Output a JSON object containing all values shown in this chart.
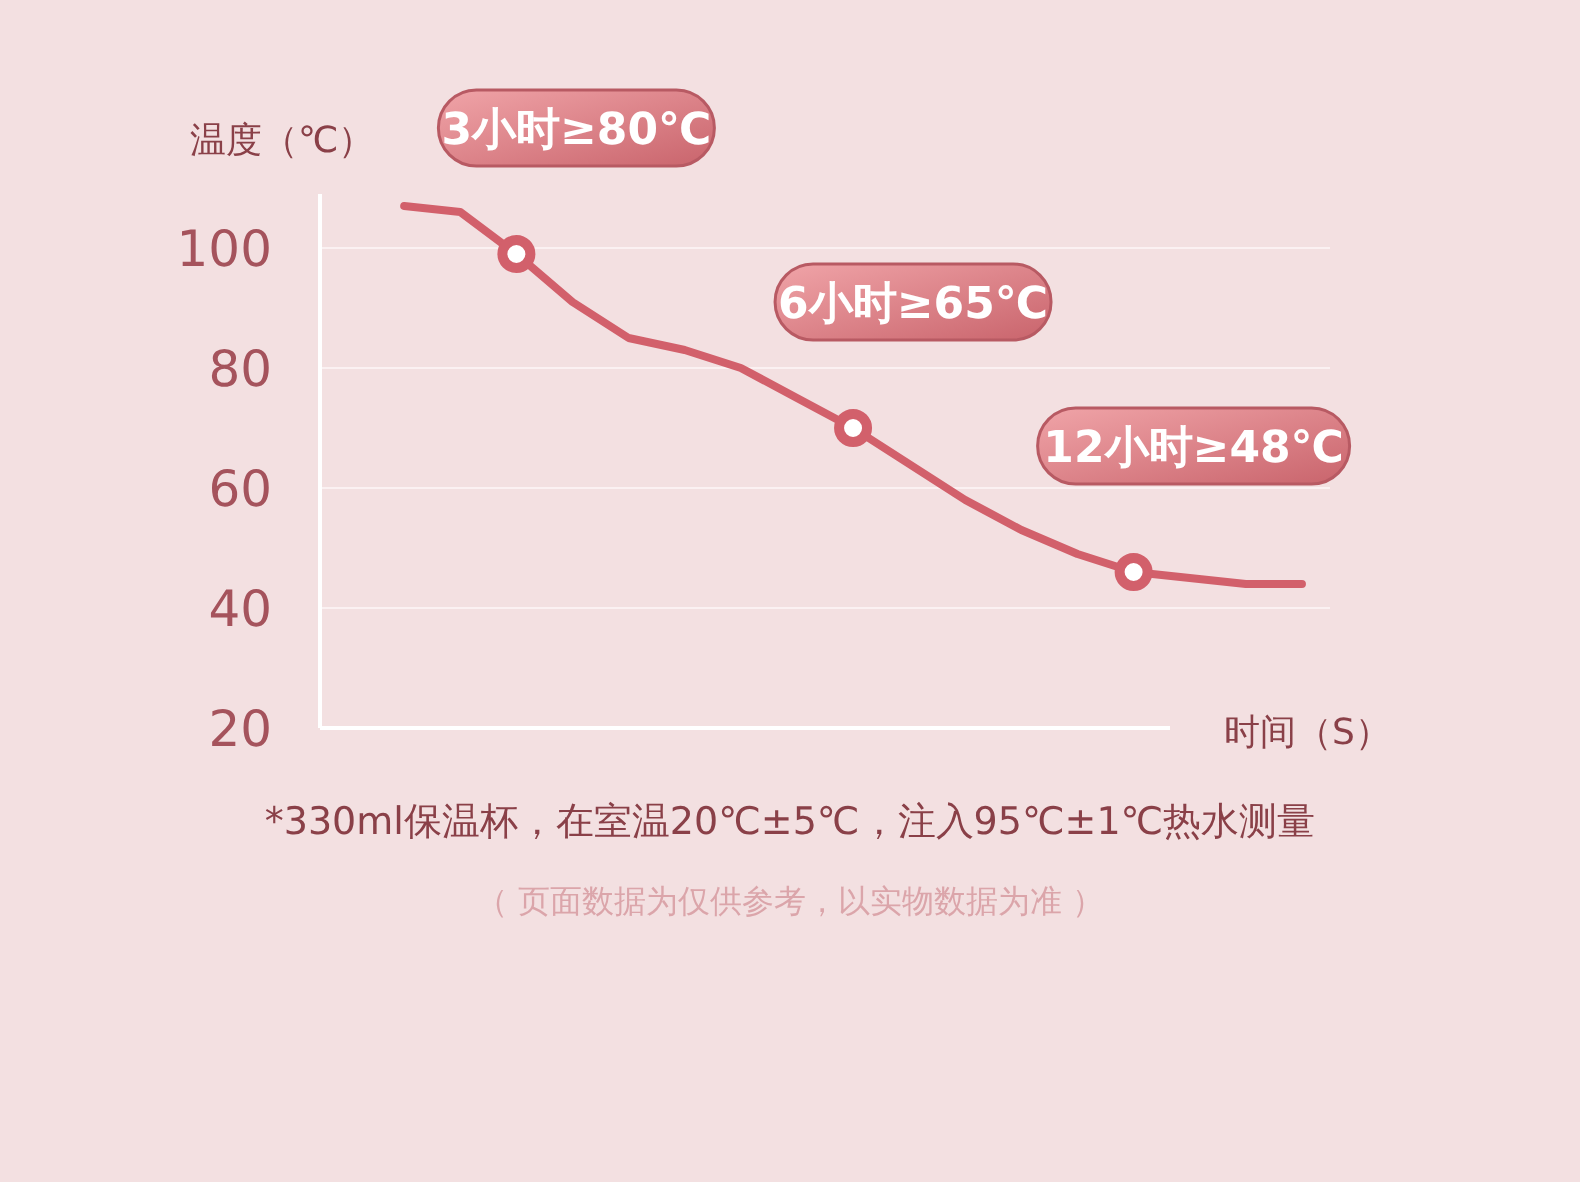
{
  "chart_data": {
    "type": "line",
    "ylabel": "温度（℃）",
    "xlabel": "时间（S）",
    "categories": [
      null,
      null,
      null,
      null,
      null,
      null,
      null,
      null,
      null,
      null,
      null,
      null,
      null,
      null,
      null,
      null,
      null,
      null
    ],
    "series": [
      {
        "type": "line",
        "color": "#d2606b",
        "values": [
          null,
          107,
          106,
          99,
          91,
          85,
          83,
          80,
          75,
          70,
          64,
          58,
          53,
          49,
          46,
          45,
          44,
          44
        ]
      },
      {
        "type": "scatter",
        "color": "#d2606b",
        "values": [
          null,
          null,
          null,
          99,
          null,
          null,
          null,
          null,
          null,
          70,
          null,
          null,
          null,
          null,
          46,
          null,
          null,
          null
        ]
      }
    ],
    "ylim": [
      20,
      109
    ],
    "yticks": [
      20,
      40,
      60,
      80,
      100
    ],
    "grid": "y",
    "annotations": [
      "3小时≥80℃",
      "6小时≥65℃",
      "12小时≥48℃",
      "*330ml保温杯，在室温20℃±5℃，注入95℃±1℃热水测量",
      "（ 页面数据为仅供参考，以实物数据为准 ）"
    ]
  }
}
